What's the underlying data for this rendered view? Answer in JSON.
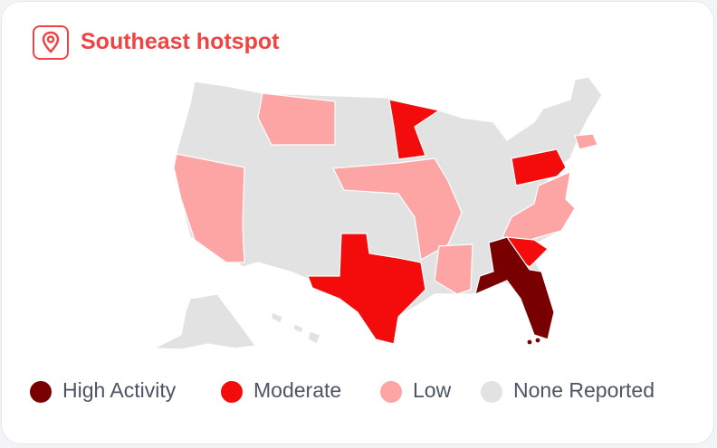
{
  "header": {
    "title": "Southeast hotspot"
  },
  "legend": [
    {
      "label": "High Activity",
      "color": "#780000"
    },
    {
      "label": "Moderate",
      "color": "#f40c0c"
    },
    {
      "label": "Low",
      "color": "#fda4a4"
    },
    {
      "label": "None Reported",
      "color": "#e2e2e2"
    }
  ]
}
